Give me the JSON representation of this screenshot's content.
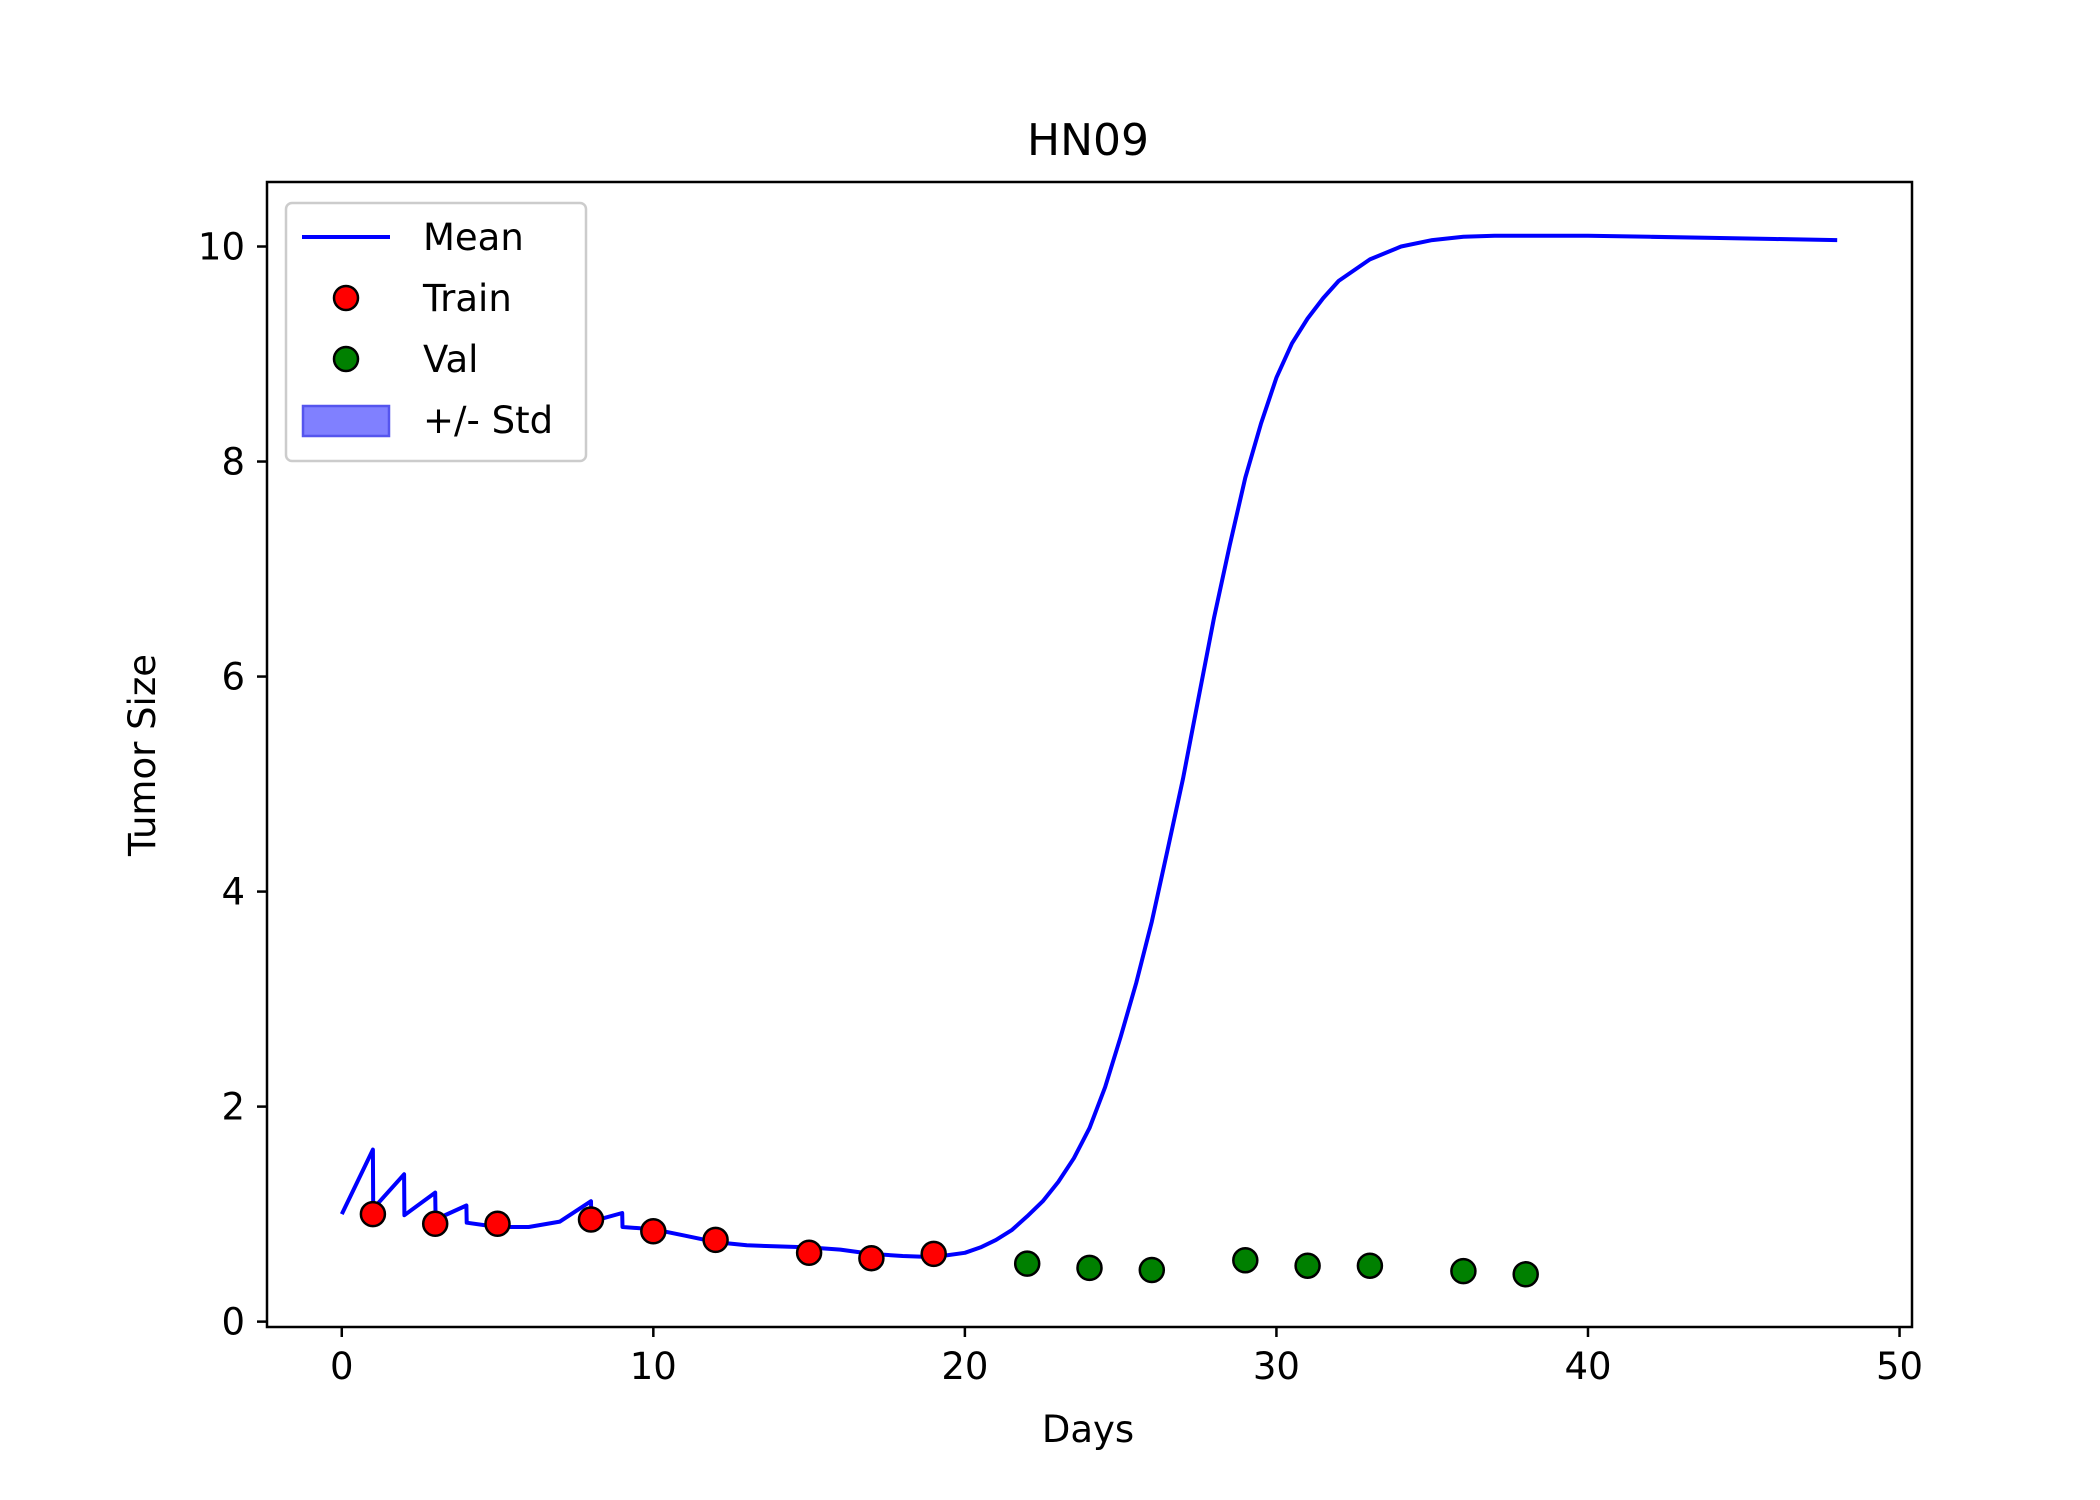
{
  "chart_data": {
    "type": "line",
    "title": "HN09",
    "xlabel": "Days",
    "ylabel": "Tumor Size",
    "xlim": [
      -2.4,
      50.4
    ],
    "ylim": [
      -0.05,
      10.6
    ],
    "xticks": [
      0,
      10,
      20,
      30,
      40,
      50
    ],
    "yticks": [
      0,
      2,
      4,
      6,
      8,
      10
    ],
    "grid": false,
    "legend_position": "upper left",
    "colors": {
      "mean": "#0000ff",
      "train": "#ff0000",
      "val": "#008000",
      "std_fill": "#8080ff",
      "marker_edge": "#000000"
    },
    "series": [
      {
        "name": "Mean",
        "kind": "line",
        "x": [
          0,
          1,
          1.01,
          2,
          2.01,
          3,
          3.01,
          4,
          4.01,
          5,
          6,
          7,
          8,
          8.01,
          9,
          9.01,
          10,
          11,
          12,
          13,
          14,
          15,
          16,
          17,
          18,
          19,
          20,
          20.5,
          21,
          21.5,
          22,
          22.5,
          23,
          23.5,
          24,
          24.5,
          25,
          25.5,
          26,
          26.5,
          27,
          27.5,
          28,
          28.5,
          29,
          29.5,
          30,
          30.5,
          31,
          31.5,
          32,
          33,
          34,
          35,
          36,
          37,
          38,
          40,
          42,
          44,
          46,
          48
        ],
        "y": [
          1.0,
          1.6,
          1.05,
          1.37,
          0.99,
          1.2,
          0.95,
          1.08,
          0.92,
          0.88,
          0.88,
          0.93,
          1.12,
          0.93,
          1.01,
          0.88,
          0.86,
          0.8,
          0.74,
          0.71,
          0.7,
          0.69,
          0.67,
          0.63,
          0.61,
          0.6,
          0.64,
          0.69,
          0.76,
          0.85,
          0.98,
          1.12,
          1.3,
          1.52,
          1.8,
          2.18,
          2.65,
          3.15,
          3.72,
          4.38,
          5.05,
          5.8,
          6.55,
          7.22,
          7.85,
          8.35,
          8.78,
          9.1,
          9.33,
          9.52,
          9.68,
          9.88,
          10.0,
          10.06,
          10.09,
          10.1,
          10.1,
          10.1,
          10.09,
          10.08,
          10.07,
          10.06
        ]
      },
      {
        "name": "Train",
        "kind": "scatter",
        "x": [
          1,
          3,
          5,
          8,
          10,
          12,
          15,
          17,
          19
        ],
        "y": [
          1.0,
          0.91,
          0.91,
          0.95,
          0.84,
          0.76,
          0.64,
          0.59,
          0.63
        ]
      },
      {
        "name": "Val",
        "kind": "scatter",
        "x": [
          22,
          24,
          26,
          29,
          31,
          33,
          36,
          38
        ],
        "y": [
          0.54,
          0.5,
          0.48,
          0.57,
          0.52,
          0.52,
          0.47,
          0.44
        ]
      },
      {
        "name": "+/- Std",
        "kind": "band"
      }
    ]
  }
}
